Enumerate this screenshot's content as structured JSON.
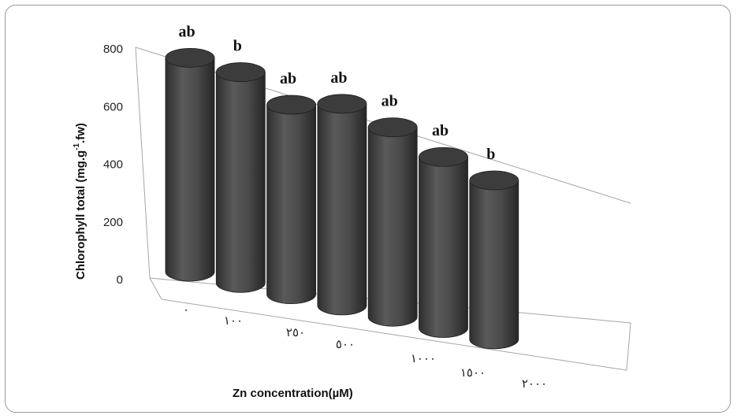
{
  "chart_data": {
    "type": "bar",
    "style": "3d-cylinder",
    "categories": [
      "٠",
      "١٠٠",
      "٢٥٠",
      "٥٠٠",
      "١٠٠٠",
      "١٥٠٠",
      "٢٠٠٠"
    ],
    "values": [
      700,
      690,
      620,
      660,
      620,
      560,
      520
    ],
    "significance_labels": [
      "ab",
      "b",
      "ab",
      "ab",
      "ab",
      "ab",
      "b"
    ],
    "xlabel": "Zn concentration(µM)",
    "ylabel": {
      "main": "Chlorophyll total (mg.g",
      "sup": "-1",
      "tail": ".fw)"
    },
    "ylim": [
      0,
      800
    ],
    "yticks": [
      0,
      200,
      400,
      600,
      800
    ],
    "grid": false,
    "bar_color": "#4a4a4a"
  }
}
